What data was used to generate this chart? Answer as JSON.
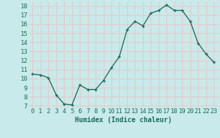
{
  "x": [
    0,
    1,
    2,
    3,
    4,
    5,
    6,
    7,
    8,
    9,
    10,
    11,
    12,
    13,
    14,
    15,
    16,
    17,
    18,
    19,
    20,
    21,
    22,
    23
  ],
  "y": [
    10.5,
    10.4,
    10.1,
    8.2,
    7.2,
    7.1,
    9.3,
    8.8,
    8.8,
    9.8,
    11.2,
    12.4,
    15.4,
    16.3,
    15.8,
    17.2,
    17.5,
    18.1,
    17.5,
    17.5,
    16.3,
    13.9,
    12.7,
    11.8
  ],
  "xlabel": "Humidex (Indice chaleur)",
  "xlim": [
    -0.5,
    23.5
  ],
  "ylim": [
    6.8,
    18.5
  ],
  "yticks": [
    7,
    8,
    9,
    10,
    11,
    12,
    13,
    14,
    15,
    16,
    17,
    18
  ],
  "xticks": [
    0,
    1,
    2,
    3,
    4,
    5,
    6,
    7,
    8,
    9,
    10,
    11,
    12,
    13,
    14,
    15,
    16,
    17,
    18,
    19,
    20,
    21,
    22,
    23
  ],
  "line_color": "#1a6b5a",
  "marker_color": "#1a6b5a",
  "bg_color": "#c8eaea",
  "grid_color": "#e8c8c8",
  "tick_label_color": "#1a6b5a",
  "xlabel_color": "#1a6b5a",
  "xlabel_fontsize": 7,
  "tick_fontsize": 6.5,
  "linewidth": 1.0,
  "markersize": 2.5
}
